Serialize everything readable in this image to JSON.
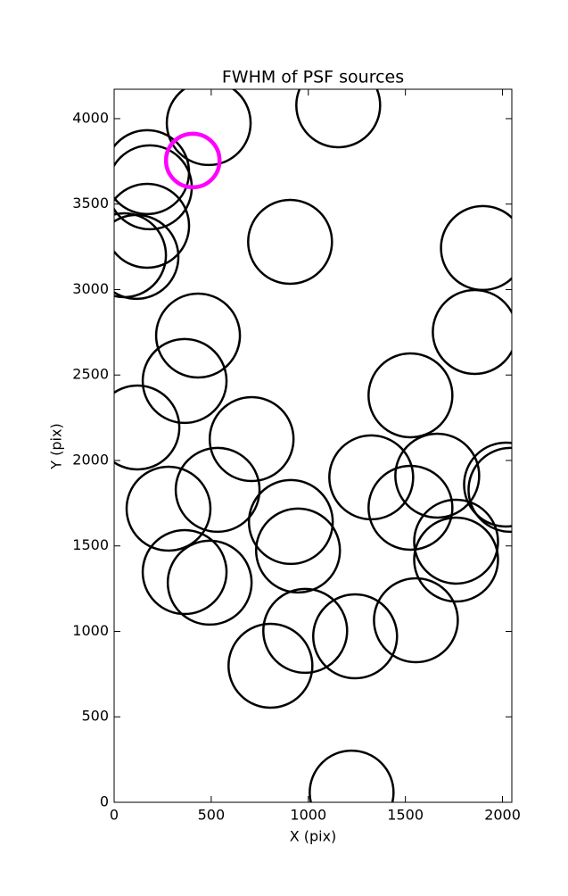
{
  "chart_data": {
    "type": "scatter",
    "title": "FWHM of PSF sources",
    "x_label": "X (pix)",
    "y_label": "Y (pix)",
    "xlim": [
      0,
      2048
    ],
    "ylim": [
      0,
      4172
    ],
    "xticks": [
      0,
      500,
      1000,
      1500,
      2000
    ],
    "yticks": [
      0,
      500,
      1000,
      1500,
      2000,
      2500,
      3000,
      3500,
      4000
    ],
    "series": [
      {
        "color": "#000000",
        "marker_size": 47,
        "x": [
          487,
          1154,
          170,
          184,
          170,
          115,
          51,
          906,
          1899,
          432,
          1857,
          363,
          1526,
          120,
          708,
          533,
          1324,
          1664,
          2018,
          2041,
          280,
          1526,
          910,
          947,
          1761,
          1761,
          363,
          492,
          984,
          1554,
          1241,
          805,
          1223
        ],
        "y": [
          3974,
          4078,
          3687,
          3598,
          3373,
          3191,
          3201,
          3279,
          3243,
          2731,
          2752,
          2465,
          2381,
          2193,
          2125,
          1828,
          1901,
          1911,
          1859,
          1828,
          1718,
          1723,
          1640,
          1473,
          1525,
          1420,
          1347,
          1285,
          1003,
          1065,
          971,
          799,
          57
        ]
      },
      {
        "color": "#ff00ff",
        "marker_size": 30,
        "x": [
          405
        ],
        "y": [
          3755
        ]
      }
    ]
  }
}
